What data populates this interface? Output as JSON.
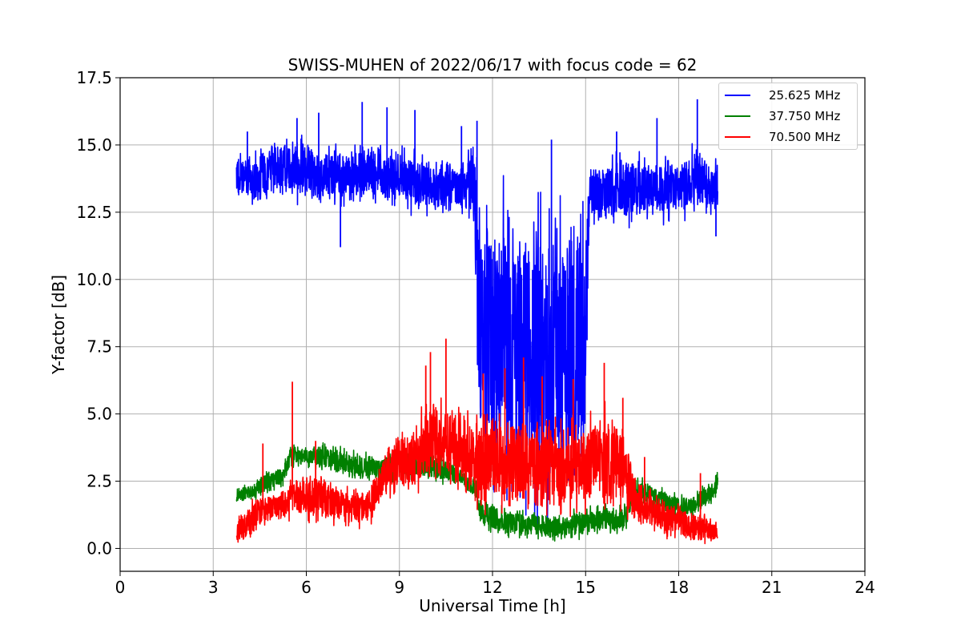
{
  "chart_data": {
    "type": "line",
    "title": "SWISS-MUHEN of 2022/06/17 with focus code = 62",
    "xlabel": "Universal Time [h]",
    "ylabel": "Y-factor [dB]",
    "xlim": [
      0,
      24
    ],
    "ylim": [
      -0.85,
      17.5
    ],
    "xticks": [
      0,
      3,
      6,
      9,
      12,
      15,
      18,
      21,
      24
    ],
    "xtick_labels": [
      "0",
      "3",
      "6",
      "9",
      "12",
      "15",
      "18",
      "21",
      "24"
    ],
    "yticks": [
      0.0,
      2.5,
      5.0,
      7.5,
      10.0,
      12.5,
      15.0,
      17.5
    ],
    "ytick_labels": [
      "0.0",
      "2.5",
      "5.0",
      "7.5",
      "10.0",
      "12.5",
      "15.0",
      "17.5"
    ],
    "grid": true,
    "legend_position": "top-right",
    "series": [
      {
        "name": "25.625 MHz",
        "color": "#0000ff",
        "x": [
          3.75,
          4.0,
          4.5,
          5.0,
          5.5,
          6.0,
          6.5,
          7.0,
          7.5,
          8.0,
          8.5,
          9.0,
          9.5,
          10.0,
          10.5,
          11.0,
          11.4,
          11.6,
          12.0,
          12.5,
          13.0,
          13.5,
          14.0,
          14.5,
          15.0,
          15.1,
          15.5,
          16.0,
          16.5,
          17.0,
          17.5,
          18.0,
          18.5,
          19.0,
          19.25
        ],
        "low": [
          12.6,
          12.6,
          12.3,
          13.0,
          12.8,
          12.6,
          12.5,
          12.6,
          12.5,
          12.6,
          12.5,
          12.4,
          12.3,
          12.2,
          12.2,
          12.1,
          11.9,
          0.7,
          0.8,
          0.5,
          0.4,
          0.2,
          0.3,
          0.4,
          0.6,
          11.8,
          11.9,
          11.9,
          11.8,
          11.9,
          12.0,
          12.1,
          12.1,
          12.2,
          12.0
        ],
        "high": [
          15.2,
          14.9,
          15.2,
          15.4,
          15.6,
          15.5,
          15.2,
          15.3,
          15.2,
          15.5,
          15.0,
          15.2,
          15.0,
          14.7,
          14.8,
          14.6,
          15.8,
          14.5,
          14.4,
          14.3,
          14.1,
          14.0,
          14.0,
          14.2,
          14.3,
          14.6,
          14.6,
          14.8,
          15.0,
          14.8,
          14.8,
          14.8,
          15.2,
          14.8,
          14.7
        ],
        "spikes": [
          [
            4.1,
            15.5
          ],
          [
            5.7,
            16.0
          ],
          [
            6.4,
            16.2
          ],
          [
            7.8,
            16.6
          ],
          [
            8.6,
            16.4
          ],
          [
            9.5,
            16.3
          ],
          [
            11.0,
            15.7
          ],
          [
            11.5,
            15.9
          ],
          [
            13.9,
            15.2
          ],
          [
            16.0,
            15.5
          ],
          [
            17.3,
            16.0
          ],
          [
            18.6,
            16.7
          ],
          [
            7.1,
            11.2
          ],
          [
            19.2,
            11.6
          ]
        ]
      },
      {
        "name": "37.750 MHz",
        "color": "#008000",
        "x": [
          3.75,
          4.2,
          4.7,
          5.2,
          5.5,
          6.0,
          6.5,
          7.0,
          7.5,
          8.0,
          8.5,
          9.0,
          9.5,
          10.0,
          10.5,
          11.0,
          11.5,
          11.6,
          12.0,
          12.5,
          13.0,
          13.5,
          14.0,
          14.5,
          15.0,
          15.5,
          16.0,
          16.3,
          16.5,
          17.0,
          17.5,
          18.0,
          18.5,
          19.0,
          19.25
        ],
        "low": [
          1.6,
          1.6,
          2.0,
          2.2,
          2.9,
          3.0,
          2.8,
          2.6,
          2.5,
          2.4,
          2.3,
          2.4,
          2.5,
          2.4,
          2.3,
          2.2,
          1.6,
          0.6,
          0.5,
          0.3,
          0.3,
          0.2,
          0.1,
          0.2,
          0.3,
          0.4,
          0.5,
          0.6,
          1.5,
          1.4,
          1.2,
          1.0,
          1.1,
          1.5,
          1.8
        ],
        "high": [
          2.4,
          2.5,
          3.0,
          3.1,
          4.0,
          3.8,
          4.1,
          3.9,
          3.7,
          3.6,
          3.6,
          4.1,
          3.8,
          3.6,
          3.5,
          3.0,
          2.8,
          2.1,
          1.8,
          1.7,
          1.6,
          1.5,
          1.4,
          1.5,
          1.6,
          1.7,
          1.7,
          1.8,
          2.8,
          2.6,
          2.3,
          2.1,
          2.1,
          2.6,
          3.1
        ]
      },
      {
        "name": "70.500 MHz",
        "color": "#ff0000",
        "x": [
          3.75,
          4.2,
          4.7,
          5.2,
          5.6,
          6.0,
          6.5,
          7.0,
          7.5,
          8.0,
          8.5,
          9.0,
          9.5,
          10.0,
          10.5,
          11.0,
          11.5,
          12.0,
          12.5,
          13.0,
          13.5,
          14.0,
          14.5,
          15.0,
          15.5,
          16.0,
          16.3,
          16.5,
          17.0,
          17.5,
          18.0,
          18.5,
          19.0,
          19.25
        ],
        "low": [
          0.2,
          0.1,
          0.8,
          0.9,
          1.0,
          0.9,
          0.8,
          0.7,
          0.6,
          0.6,
          1.6,
          1.8,
          1.9,
          2.0,
          2.1,
          2.0,
          1.0,
          0.9,
          0.8,
          0.8,
          0.7,
          0.8,
          0.9,
          1.0,
          1.0,
          0.9,
          1.0,
          0.7,
          0.5,
          0.3,
          0.2,
          0.1,
          0.1,
          0.2
        ],
        "high": [
          1.2,
          1.9,
          2.3,
          2.3,
          2.9,
          3.0,
          3.0,
          2.6,
          2.5,
          2.6,
          4.0,
          4.7,
          4.6,
          6.2,
          6.0,
          5.3,
          5.4,
          5.8,
          5.7,
          5.5,
          5.4,
          5.4,
          5.0,
          5.2,
          5.6,
          5.4,
          4.8,
          3.3,
          2.4,
          2.0,
          1.8,
          1.5,
          1.3,
          0.9
        ],
        "spikes": [
          [
            4.6,
            3.9
          ],
          [
            5.55,
            6.2
          ],
          [
            6.3,
            4.0
          ],
          [
            9.85,
            6.8
          ],
          [
            10.0,
            7.3
          ],
          [
            10.5,
            7.8
          ],
          [
            11.7,
            6.5
          ],
          [
            12.4,
            6.7
          ],
          [
            13.0,
            7.1
          ],
          [
            13.6,
            6.4
          ],
          [
            14.6,
            6.3
          ],
          [
            15.6,
            6.9
          ],
          [
            16.2,
            5.6
          ],
          [
            16.9,
            3.4
          ],
          [
            18.7,
            2.8
          ]
        ]
      }
    ]
  }
}
